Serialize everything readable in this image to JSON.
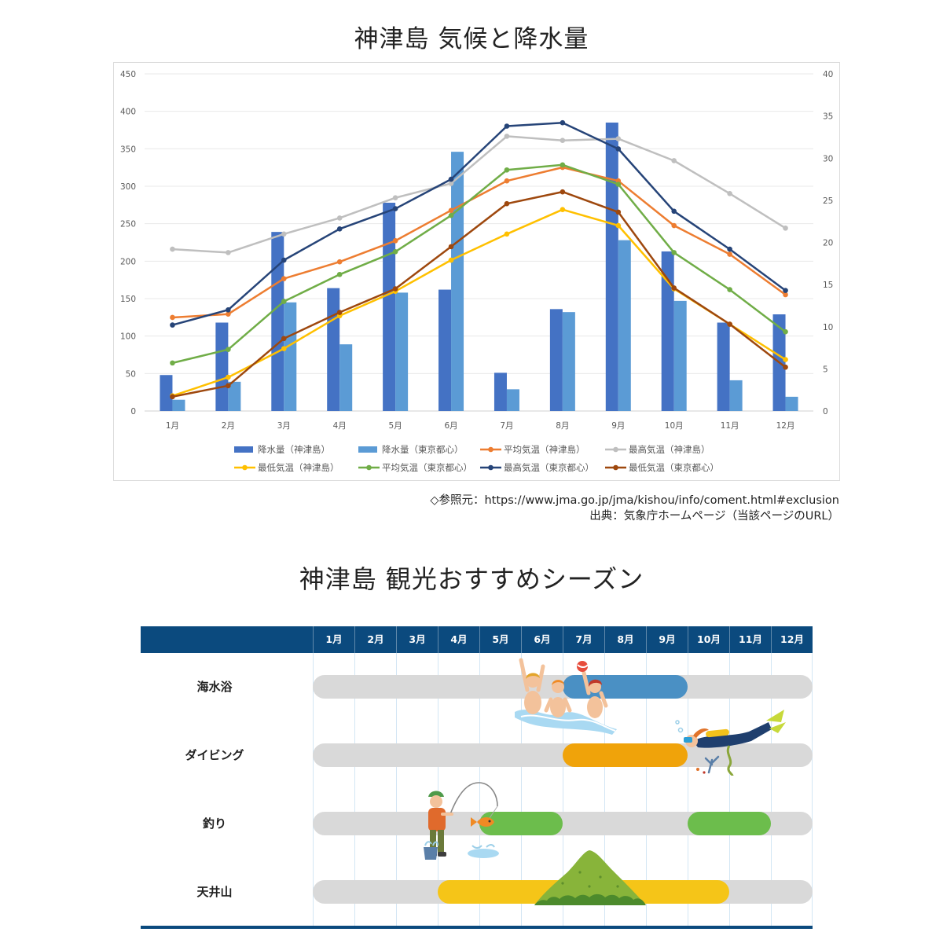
{
  "chart_section": {
    "source_line": "◇参照元：https://www.jma.go.jp/jma/kishou/info/coment.html#exclusion",
    "credit_line": "出典：気象庁ホームページ（当該ページのURL）"
  },
  "chart_data": {
    "type": "bar",
    "title": "神津島 気候と降水量",
    "categories": [
      "1月",
      "2月",
      "3月",
      "4月",
      "5月",
      "6月",
      "7月",
      "8月",
      "9月",
      "10月",
      "11月",
      "12月"
    ],
    "y_left": {
      "ylim": [
        0,
        450
      ],
      "ticks": [
        0,
        50,
        100,
        150,
        200,
        250,
        300,
        350,
        400,
        450
      ]
    },
    "y_right": {
      "ylim": [
        0,
        40
      ],
      "ticks": [
        0,
        5,
        10,
        15,
        20,
        25,
        30,
        35,
        40
      ]
    },
    "grid": true,
    "legend_position": "bottom",
    "series": [
      {
        "name": "降水量（神津島）",
        "chart_type": "bar",
        "axis": "left",
        "color": "#4472c4",
        "values": [
          48,
          118,
          239,
          164,
          278,
          162,
          51,
          136,
          385,
          213,
          118,
          129
        ]
      },
      {
        "name": "降水量（東京都心）",
        "chart_type": "bar",
        "axis": "left",
        "color": "#5b9bd5",
        "values": [
          15,
          39,
          145,
          89,
          158,
          346,
          29,
          132,
          228,
          147,
          41,
          19
        ]
      },
      {
        "name": "平均気温（神津島）",
        "chart_type": "line",
        "axis": "right",
        "color": "#ed7d31",
        "values": [
          11.1,
          11.5,
          15.7,
          17.7,
          20.2,
          23.8,
          27.3,
          28.9,
          27.3,
          22.0,
          18.6,
          13.8
        ]
      },
      {
        "name": "最高気温（神津島）",
        "chart_type": "line",
        "axis": "right",
        "color": "#bfbfbf",
        "values": [
          19.2,
          18.8,
          21.0,
          22.9,
          25.3,
          27.0,
          32.6,
          32.1,
          32.3,
          29.7,
          25.8,
          21.7
        ]
      },
      {
        "name": "最低気温（神津島）",
        "chart_type": "line",
        "axis": "right",
        "color": "#ffc000",
        "values": [
          1.8,
          4.0,
          7.4,
          11.3,
          14.2,
          17.9,
          21.0,
          23.9,
          22.0,
          14.5,
          10.3,
          6.1
        ]
      },
      {
        "name": "平均気温（東京都心）",
        "chart_type": "line",
        "axis": "right",
        "color": "#70ad47",
        "values": [
          5.7,
          7.3,
          13.0,
          16.2,
          18.9,
          23.2,
          28.6,
          29.2,
          26.9,
          18.8,
          14.4,
          9.4
        ]
      },
      {
        "name": "最高気温（東京都心）",
        "chart_type": "line",
        "axis": "right",
        "color": "#264478",
        "values": [
          10.2,
          12.0,
          17.9,
          21.6,
          24.0,
          27.5,
          33.8,
          34.2,
          31.1,
          23.7,
          19.2,
          14.3
        ]
      },
      {
        "name": "最低気温（東京都心）",
        "chart_type": "line",
        "axis": "right",
        "color": "#9e480e",
        "values": [
          1.7,
          3.0,
          8.6,
          11.7,
          14.5,
          19.5,
          24.6,
          26.0,
          23.6,
          14.6,
          10.3,
          5.2
        ]
      }
    ]
  },
  "season": {
    "title": "神津島 観光おすすめシーズン",
    "months": [
      "1月",
      "2月",
      "3月",
      "4月",
      "5月",
      "6月",
      "7月",
      "8月",
      "9月",
      "10月",
      "11月",
      "12月"
    ],
    "header_color": "#0b4a7e",
    "track_color": "#d9d9d9",
    "rows": [
      {
        "label": "海水浴",
        "illustration": "swimmers",
        "color": "#4a90c4",
        "periods": [
          {
            "start": 7,
            "end": 9
          }
        ]
      },
      {
        "label": "ダイビング",
        "illustration": "diver",
        "color": "#f0a30a",
        "periods": [
          {
            "start": 7,
            "end": 9
          }
        ]
      },
      {
        "label": "釣り",
        "illustration": "fisherman",
        "color": "#6cbd4c",
        "periods": [
          {
            "start": 5,
            "end": 6
          },
          {
            "start": 10,
            "end": 11
          }
        ]
      },
      {
        "label": "天井山",
        "illustration": "mountain",
        "color": "#f5c518",
        "periods": [
          {
            "start": 4,
            "end": 10
          }
        ]
      }
    ]
  }
}
